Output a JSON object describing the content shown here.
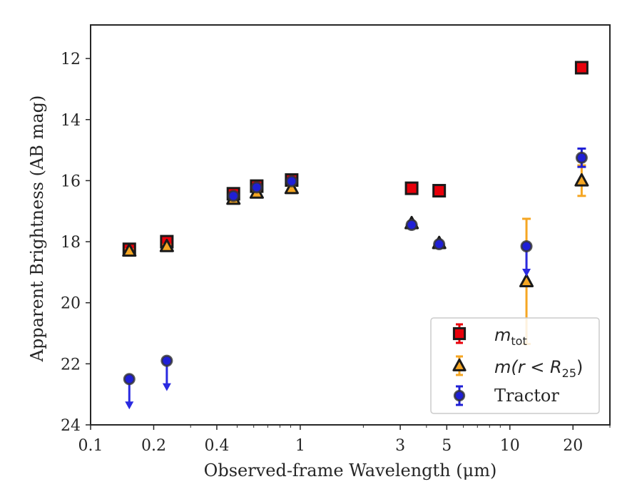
{
  "chart_data": {
    "type": "scatter",
    "xlabel": "Observed-frame Wavelength (μm)",
    "ylabel": "Apparent Brightness (AB mag)",
    "xscale": "log",
    "xlim": [
      0.1,
      30
    ],
    "ylim": [
      24,
      10.9
    ],
    "y_inverted": true,
    "xticks": [
      0.1,
      0.2,
      0.4,
      1,
      3,
      5,
      10,
      20
    ],
    "xtick_labels": [
      "0.1",
      "0.2",
      "0.4",
      "1",
      "3",
      "5",
      "10",
      "20"
    ],
    "yticks": [
      12,
      14,
      16,
      18,
      20,
      22,
      24
    ],
    "ytick_labels": [
      "12",
      "14",
      "16",
      "18",
      "20",
      "22",
      "24"
    ],
    "grid": false,
    "legend_position": "bottom-right",
    "series": [
      {
        "name": "m_tot",
        "marker": "square",
        "color": "#e8000b",
        "edge_color": "#1a1a1a",
        "x": [
          0.153,
          0.231,
          0.48,
          0.62,
          0.91,
          3.4,
          4.6,
          22
        ],
        "y": [
          18.25,
          18.0,
          16.43,
          16.18,
          15.98,
          16.25,
          16.33,
          12.3
        ],
        "yerr": [
          0.1,
          0.08,
          0.03,
          0.03,
          0.03,
          0.03,
          0.03,
          0.05
        ]
      },
      {
        "name": "m(r < R_25)",
        "marker": "triangle",
        "color": "#f5a623",
        "edge_color": "#1a1a1a",
        "x": [
          0.153,
          0.231,
          0.48,
          0.62,
          0.91,
          3.4,
          4.6,
          12,
          22
        ],
        "y": [
          18.3,
          18.15,
          16.6,
          16.4,
          16.25,
          17.4,
          18.05,
          19.3,
          16.0
        ],
        "yerr": [
          0.05,
          0.05,
          0.03,
          0.03,
          0.03,
          0.05,
          0.05,
          2.05,
          0.5
        ]
      },
      {
        "name": "Tractor",
        "marker": "circle",
        "color": "#1f1fd6",
        "edge_color": "#333333",
        "x": [
          0.153,
          0.231,
          0.48,
          0.62,
          0.91,
          3.4,
          4.6,
          12,
          22
        ],
        "y": [
          22.5,
          21.9,
          16.5,
          16.22,
          16.02,
          17.45,
          18.08,
          18.15,
          15.25
        ],
        "yerr": [
          0.0,
          0.0,
          0.03,
          0.03,
          0.03,
          0.05,
          0.05,
          0.0,
          0.3
        ],
        "upper_limit": [
          true,
          true,
          false,
          false,
          false,
          false,
          false,
          true,
          false
        ]
      }
    ]
  },
  "legend": {
    "items": [
      {
        "main": "m",
        "sub": "tot"
      },
      {
        "main": "m(r < R",
        "sub": "25",
        "tail": ")"
      },
      {
        "main": "Tractor"
      }
    ]
  }
}
